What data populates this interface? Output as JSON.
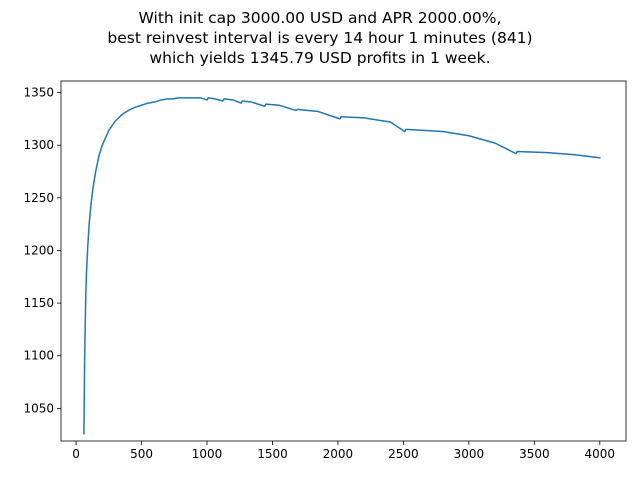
{
  "chart_data": {
    "type": "line",
    "title_lines": [
      "With init cap 3000.00 USD and APR 2000.00%,",
      "best reinvest interval is every 14 hour 1 minutes (841)",
      "which yields 1345.79 USD profits in 1 week."
    ],
    "xlabel": "",
    "ylabel": "",
    "xlim": [
      -115,
      4200
    ],
    "ylim": [
      1019,
      1361
    ],
    "x_ticks": [
      0,
      500,
      1000,
      1500,
      2000,
      2500,
      3000,
      3500,
      4000
    ],
    "y_ticks": [
      1050,
      1100,
      1150,
      1200,
      1250,
      1300,
      1350
    ],
    "x_tick_labels": [
      "0",
      "500",
      "1000",
      "1500",
      "2000",
      "2500",
      "3000",
      "3500",
      "4000"
    ],
    "y_tick_labels": [
      "1050",
      "1100",
      "1150",
      "1200",
      "1250",
      "1300",
      "1350"
    ],
    "grid": false,
    "legend": false,
    "series": [
      {
        "color": "#1f77b4",
        "x": [
          60,
          65,
          70,
          75,
          80,
          90,
          100,
          115,
          130,
          150,
          175,
          200,
          250,
          300,
          350,
          400,
          450,
          500,
          550,
          600,
          650,
          700,
          740,
          780,
          820,
          860,
          900,
          950,
          1000,
          1010,
          1060,
          1120,
          1130,
          1200,
          1260,
          1270,
          1340,
          1440,
          1450,
          1550,
          1680,
          1690,
          1850,
          2015,
          2025,
          2200,
          2400,
          2510,
          2520,
          2800,
          3000,
          3200,
          3360,
          3370,
          3600,
          3800,
          4000
        ],
        "y": [
          1026,
          1090,
          1130,
          1160,
          1180,
          1205,
          1225,
          1245,
          1260,
          1275,
          1290,
          1300,
          1314,
          1323,
          1329,
          1333,
          1336,
          1338,
          1340,
          1341,
          1343,
          1344,
          1344,
          1345,
          1345,
          1345,
          1345,
          1345,
          1343,
          1345,
          1344,
          1342,
          1344,
          1343,
          1340,
          1342,
          1341,
          1337,
          1339,
          1338,
          1333,
          1334,
          1332,
          1325,
          1327,
          1326,
          1322,
          1313,
          1315,
          1313,
          1309,
          1302,
          1292,
          1294,
          1293,
          1291,
          1288
        ]
      }
    ]
  }
}
